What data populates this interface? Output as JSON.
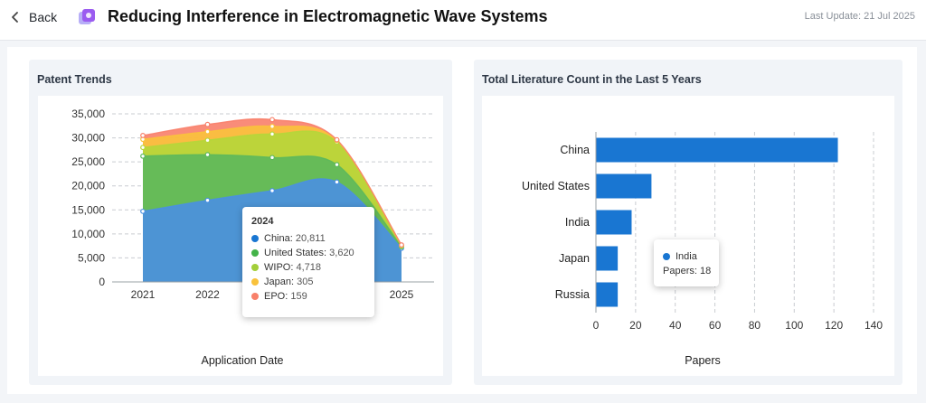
{
  "header": {
    "back_label": "Back",
    "title": "Reducing Interference in Electromagnetic Wave Systems",
    "last_update_label": "Last Update:",
    "last_update_value": "21 Jul 2025"
  },
  "patent_trends": {
    "title": "Patent Trends",
    "tooltip": {
      "year": "2024",
      "rows": [
        {
          "label": "China",
          "value": "20,811",
          "color": "#1976d2"
        },
        {
          "label": "United States",
          "value": "3,620",
          "color": "#43b349"
        },
        {
          "label": "WIPO",
          "value": "4,718",
          "color": "#a3cf3a"
        },
        {
          "label": "Japan",
          "value": "305",
          "color": "#f9c23c"
        },
        {
          "label": "EPO",
          "value": "159",
          "color": "#f8806a"
        }
      ]
    }
  },
  "literature": {
    "title": "Total Literature Count in the Last 5 Years",
    "tooltip": {
      "label": "India",
      "metric_label": "Papers:",
      "metric_value": "18",
      "color": "#1976d2"
    }
  },
  "chart_data": [
    {
      "type": "area",
      "stacked": true,
      "title": "Patent Trends",
      "xlabel": "Application Date",
      "ylabel": "",
      "x": [
        "2021",
        "2022",
        "2023",
        "2024",
        "2025"
      ],
      "ylim": [
        0,
        35000
      ],
      "y_ticks": [
        "0",
        "5,000",
        "10,000",
        "15,000",
        "20,000",
        "25,000",
        "30,000",
        "35,000"
      ],
      "grid": true,
      "series": [
        {
          "name": "China",
          "color": "#4a90e2",
          "values": [
            14700,
            17000,
            19000,
            20811,
            7000
          ]
        },
        {
          "name": "United States",
          "color": "#5cb85c",
          "values": [
            11500,
            9500,
            6900,
            3620,
            300
          ]
        },
        {
          "name": "WIPO",
          "color": "#b5d63a",
          "values": [
            1800,
            3000,
            4900,
            4718,
            200
          ]
        },
        {
          "name": "Japan",
          "color": "#f9c23c",
          "values": [
            1700,
            1800,
            1600,
            305,
            100
          ]
        },
        {
          "name": "EPO",
          "color": "#f8806a",
          "values": [
            800,
            1500,
            1400,
            159,
            100
          ]
        }
      ]
    },
    {
      "type": "bar",
      "orientation": "horizontal",
      "title": "Total Literature Count in the Last 5 Years",
      "xlabel": "Papers",
      "ylabel": "",
      "categories": [
        "China",
        "United States",
        "India",
        "Japan",
        "Russia"
      ],
      "values": [
        122,
        28,
        18,
        11,
        11
      ],
      "xlim": [
        0,
        140
      ],
      "x_ticks": [
        "0",
        "20",
        "40",
        "60",
        "80",
        "100",
        "120",
        "140"
      ],
      "color": "#1976d2",
      "grid": true
    }
  ]
}
